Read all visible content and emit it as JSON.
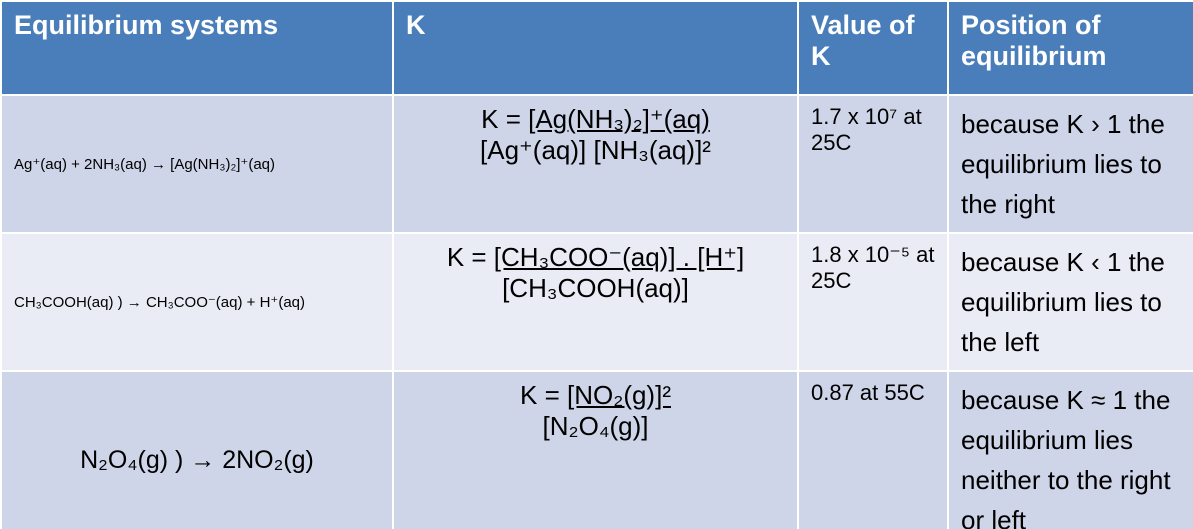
{
  "table": {
    "header": [
      "Equilibrium systems",
      "K",
      "Value of K",
      "Position of equilibrium"
    ],
    "rows": [
      {
        "system": "Ag⁺(aq) + 2NH₃(aq) → [Ag(NH₃)₂]⁺(aq)",
        "k": {
          "label": "K =",
          "numerator": "[Ag(NH₃)₂]⁺(aq)",
          "denominator": "[Ag⁺(aq)] [NH₃(aq)]²"
        },
        "value": "1.7 x 10⁷ at 25C",
        "position": "because K › 1 the equilibrium lies to the right"
      },
      {
        "system": "CH₃COOH(aq) ) → CH₃COO⁻(aq) + H⁺(aq)",
        "k": {
          "label": "K =",
          "numerator": "[CH₃COO⁻(aq)] . [H⁺]",
          "denominator": "[CH₃COOH(aq)]"
        },
        "value": "1.8 x 10⁻⁵ at 25C",
        "position": "because K ‹ 1 the equilibrium lies to the left"
      },
      {
        "system": "N₂O₄(g) ) → 2NO₂(g)",
        "k": {
          "label": "K =",
          "numerator": "[NO₂(g)]²",
          "denominator": "[N₂O₄(g)]"
        },
        "value": "0.87 at 55C",
        "position": "because K ≈ 1 the equilibrium lies neither to the right or left"
      }
    ]
  }
}
